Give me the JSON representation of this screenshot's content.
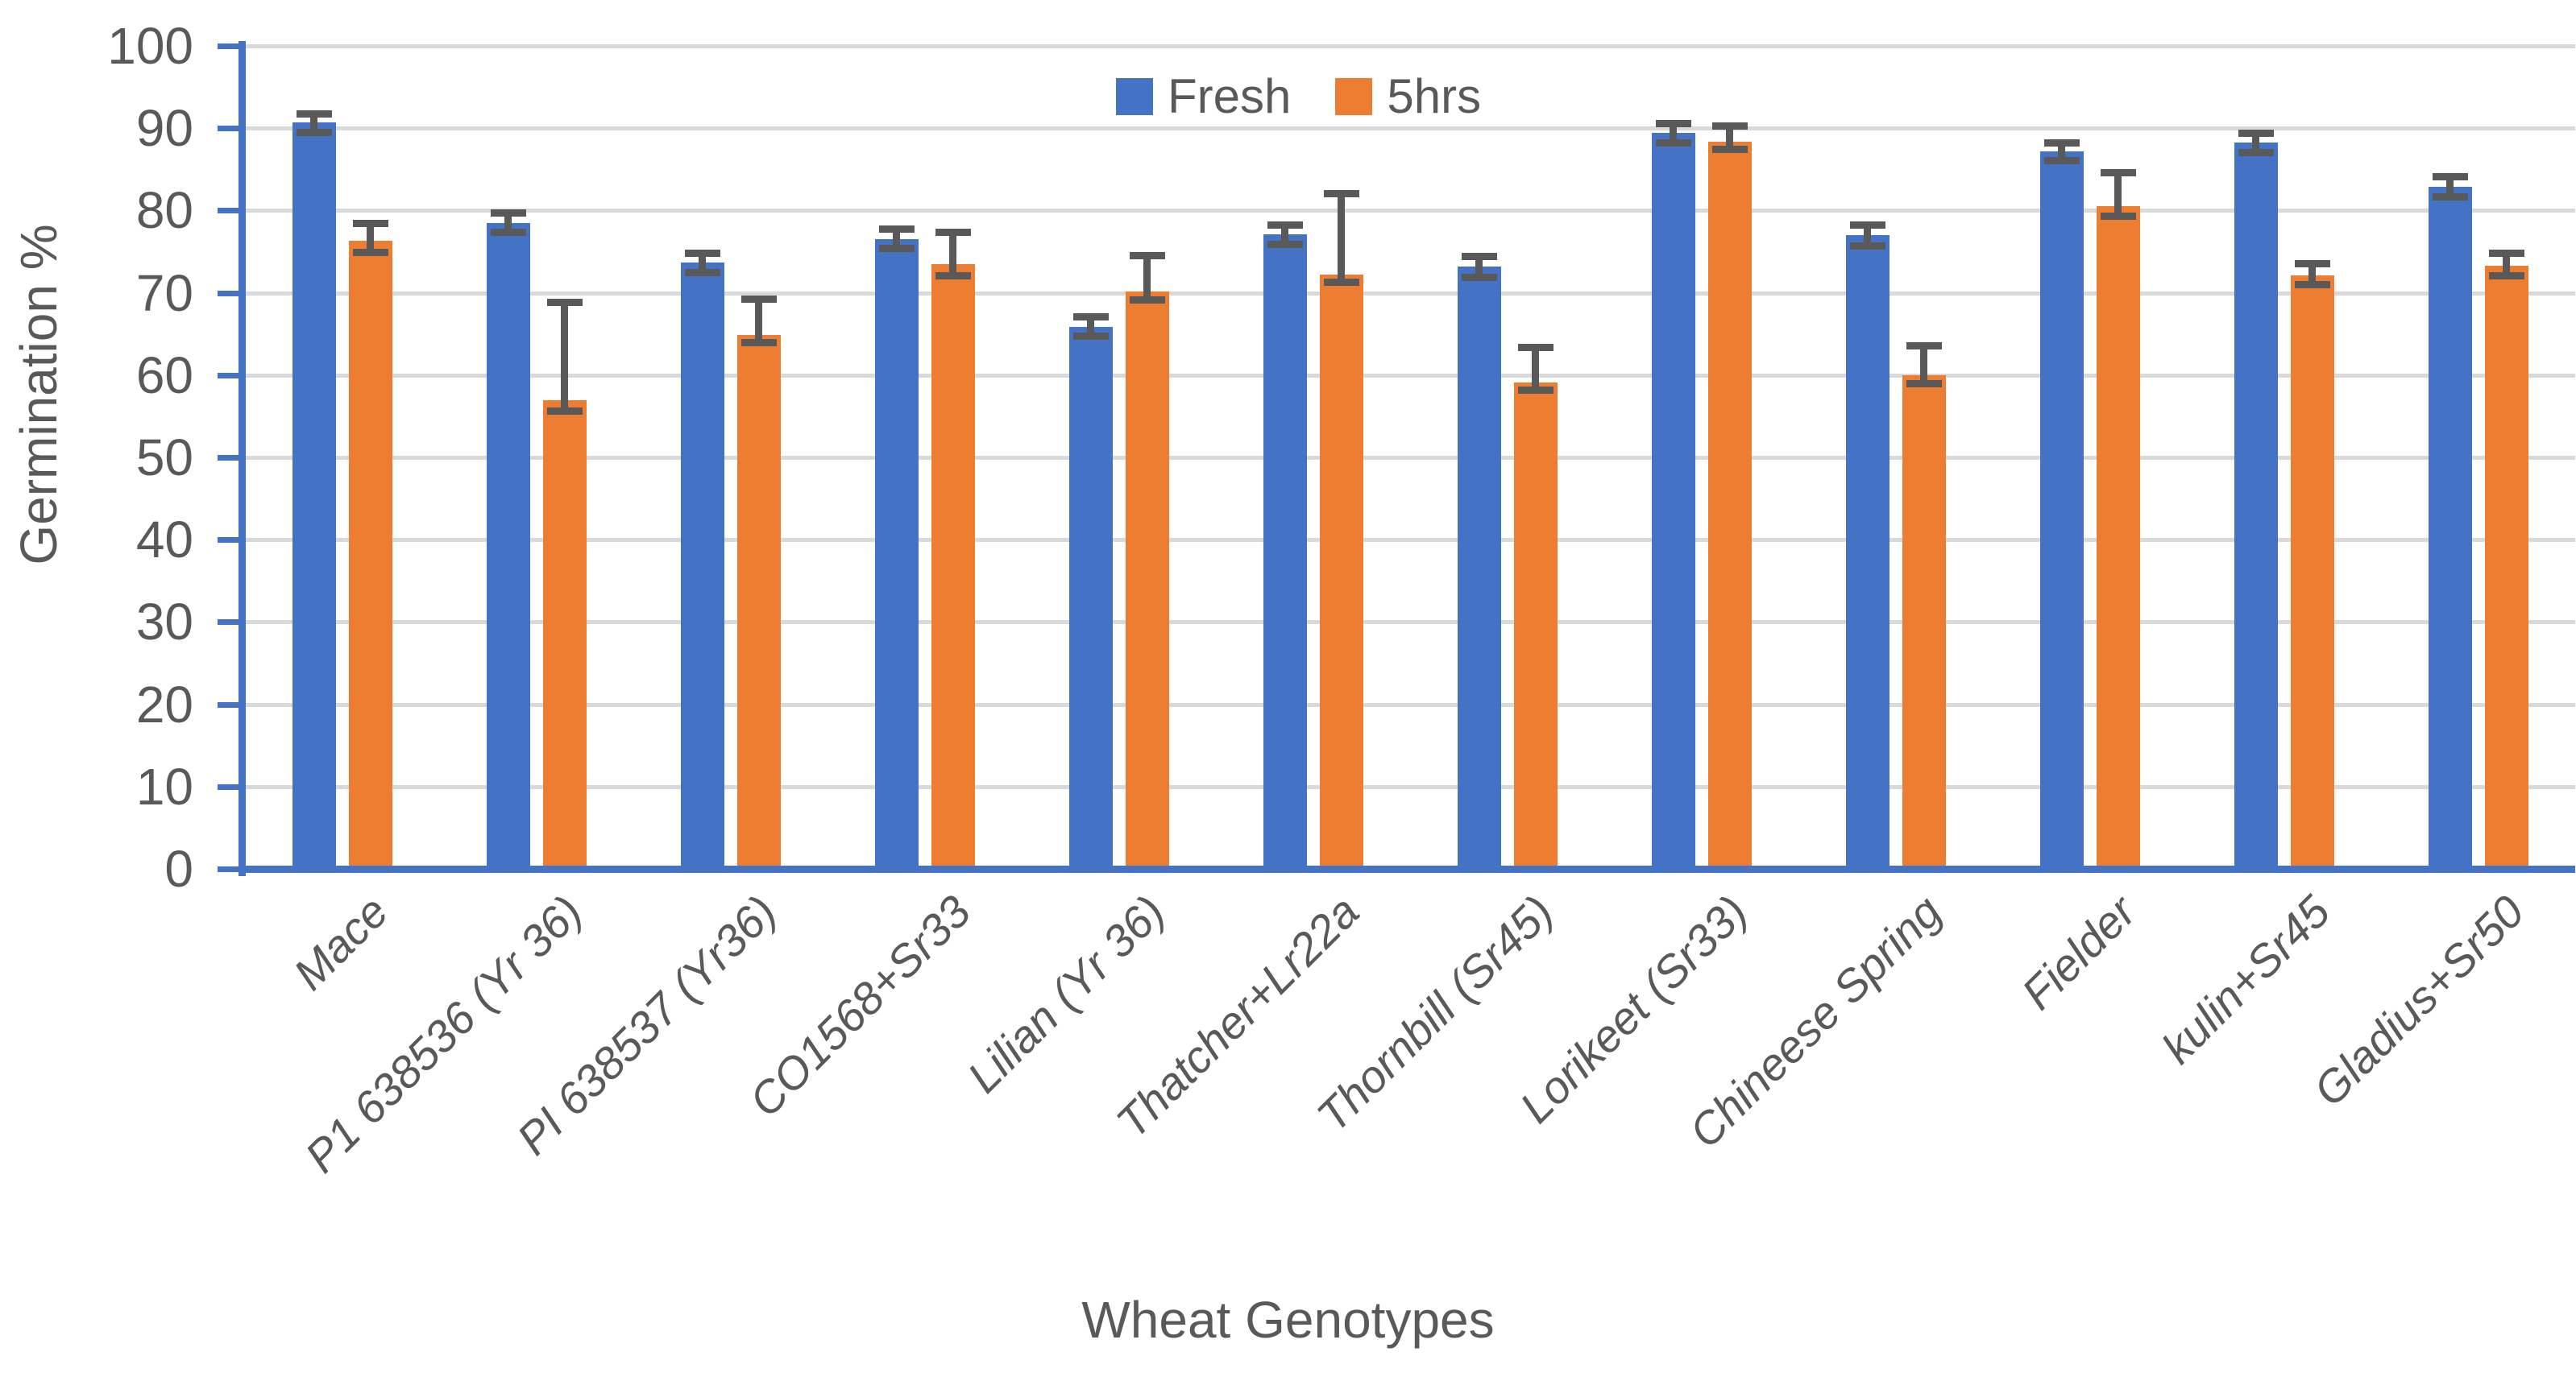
{
  "chart_data": {
    "type": "bar",
    "title": "",
    "xlabel": "Wheat Genotypes",
    "ylabel": "Germination %",
    "ylim": [
      0,
      100
    ],
    "yticks": [
      0,
      10,
      20,
      30,
      40,
      50,
      60,
      70,
      80,
      90,
      100
    ],
    "grid": "horizontal",
    "legend_position": "top-center",
    "error_bars": "asymmetric, cap values given as error_upper / error_lower",
    "categories": [
      "Mace",
      "P1 638536 (Yr 36)",
      "PI 638537 (Yr36)",
      "CO1568+Sr33",
      "Lilian (Yr 36)",
      "Thatcher+Lr22a",
      "Thornbill (Sr45)",
      "Lorikeet (Sr33)",
      "Chineese Spring",
      "Fielder",
      "kulin+Sr45",
      "Gladius+Sr50"
    ],
    "series": [
      {
        "name": "Fresh",
        "color": "#4472C4",
        "values": [
          90.7,
          78.5,
          73.7,
          76.5,
          65.9,
          77.1,
          73.2,
          89.4,
          77.0,
          87.2,
          88.3,
          82.9
        ],
        "error_upper": [
          91.8,
          79.7,
          74.9,
          77.8,
          67.1,
          78.3,
          74.5,
          90.6,
          78.3,
          88.3,
          89.4,
          84.1
        ],
        "error_lower": [
          89.5,
          77.4,
          72.5,
          75.4,
          64.8,
          75.9,
          71.9,
          88.3,
          75.7,
          86.1,
          87.1,
          81.7
        ]
      },
      {
        "name": "5hrs",
        "color": "#ED7D31",
        "values": [
          76.3,
          56.9,
          64.9,
          73.5,
          70.2,
          72.2,
          59.1,
          88.4,
          60.0,
          80.5,
          72.1,
          73.3
        ],
        "error_upper": [
          78.5,
          68.9,
          69.3,
          77.4,
          74.6,
          82.1,
          63.4,
          90.3,
          63.6,
          84.6,
          73.6,
          74.9
        ],
        "error_lower": [
          75.0,
          55.7,
          64.0,
          72.1,
          69.2,
          71.3,
          58.2,
          87.5,
          59.0,
          79.4,
          71.0,
          72.1
        ]
      }
    ],
    "colors": {
      "axis_line": "#4472C4",
      "gridline": "#D9D9D9",
      "error_bar": "#595959",
      "text": "#595959",
      "background": "#FFFFFF"
    }
  }
}
